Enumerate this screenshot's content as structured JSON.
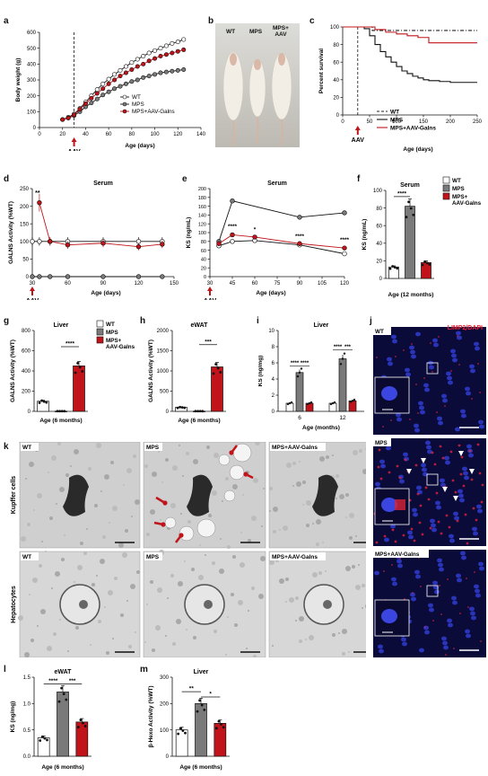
{
  "panel_letters": [
    "a",
    "b",
    "c",
    "d",
    "e",
    "f",
    "g",
    "h",
    "i",
    "j",
    "k",
    "l",
    "m"
  ],
  "groups": {
    "wt": "WT",
    "mps": "MPS",
    "mps_aav": "MPS+AAV-Galns",
    "mps_aav_short": "MPS+\nAAV"
  },
  "colors": {
    "wt": "#ffffff",
    "mps": "#7a7a7a",
    "mps_aav": "#c0141a",
    "dark": "#111111"
  },
  "aav_label": "AAV",
  "photo": {
    "labels": [
      "WT",
      "MPS",
      "MPS+\nAAV"
    ]
  },
  "microscopy_k": {
    "row_labels": [
      "Kupffer cells",
      "Hepatocytes"
    ],
    "col_labels": [
      "WT",
      "MPS",
      "MPS+AAV-Galns"
    ]
  },
  "microscopy_j": {
    "stain": "LIMP2/DAPI",
    "panels": [
      "WT",
      "MPS",
      "MPS+AAV-Galns"
    ]
  },
  "chart_data": [
    {
      "panel": "a",
      "type": "line",
      "xlabel": "Age (days)",
      "ylabel": "Body weight (g)",
      "xlim": [
        0,
        140
      ],
      "ylim": [
        0,
        600
      ],
      "x": [
        20,
        25,
        30,
        35,
        40,
        45,
        50,
        55,
        60,
        65,
        70,
        75,
        80,
        85,
        90,
        95,
        100,
        105,
        110,
        115,
        120,
        125
      ],
      "series": [
        {
          "name": "WT",
          "values": [
            50,
            65,
            85,
            120,
            160,
            200,
            240,
            275,
            305,
            335,
            360,
            385,
            410,
            430,
            450,
            470,
            485,
            500,
            515,
            530,
            540,
            555
          ]
        },
        {
          "name": "MPS",
          "values": [
            50,
            60,
            75,
            100,
            130,
            155,
            180,
            205,
            225,
            245,
            260,
            275,
            290,
            300,
            315,
            325,
            335,
            345,
            350,
            355,
            360,
            365
          ]
        },
        {
          "name": "MPS+AAV-Galns",
          "values": [
            50,
            60,
            80,
            115,
            150,
            185,
            215,
            245,
            275,
            300,
            325,
            345,
            365,
            385,
            400,
            420,
            435,
            450,
            460,
            470,
            480,
            490
          ]
        }
      ]
    },
    {
      "panel": "c",
      "type": "line",
      "xlabel": "Age (days)",
      "ylabel": "Percent survival",
      "xlim": [
        0,
        250
      ],
      "ylim": [
        0,
        100
      ],
      "series": [
        {
          "name": "WT",
          "x": [
            0,
            50,
            55,
            250
          ],
          "values": [
            100,
            100,
            96,
            96
          ]
        },
        {
          "name": "MPS",
          "x": [
            0,
            40,
            50,
            60,
            70,
            80,
            90,
            100,
            110,
            120,
            130,
            140,
            150,
            160,
            180,
            200,
            220,
            250
          ],
          "values": [
            100,
            98,
            90,
            80,
            72,
            66,
            60,
            55,
            50,
            47,
            44,
            42,
            40,
            39,
            38,
            37,
            37,
            37
          ]
        },
        {
          "name": "MPS+AAV-Galns",
          "x": [
            0,
            50,
            60,
            80,
            100,
            120,
            140,
            160,
            250
          ],
          "values": [
            100,
            100,
            97,
            94,
            92,
            90,
            88,
            82,
            82
          ]
        }
      ]
    },
    {
      "panel": "d",
      "type": "line",
      "title": "Serum",
      "xlabel": "Age (days)",
      "ylabel": "GALNS Activity (%WT)",
      "xlim": [
        30,
        150
      ],
      "ylim": [
        0,
        250
      ],
      "yticks": [
        0,
        50,
        100,
        150,
        200,
        250
      ],
      "xticks": [
        30,
        60,
        90,
        120,
        150
      ],
      "series": [
        {
          "name": "WT",
          "x": [
            30,
            36,
            45,
            60,
            90,
            120,
            140
          ],
          "values": [
            100,
            100,
            100,
            100,
            100,
            100,
            100
          ]
        },
        {
          "name": "MPS",
          "x": [
            30,
            36,
            45,
            60,
            90,
            120,
            140
          ],
          "values": [
            0,
            0,
            0,
            0,
            0,
            0,
            0
          ]
        },
        {
          "name": "MPS+AAV-Galns",
          "x": [
            36,
            45,
            60,
            90,
            120,
            140
          ],
          "values": [
            210,
            100,
            90,
            95,
            85,
            92
          ]
        }
      ],
      "annotations": [
        "**"
      ]
    },
    {
      "panel": "e",
      "type": "line",
      "title": "Serum",
      "xlabel": "Age (days)",
      "ylabel": "KS (ng/mL)",
      "xlim": [
        30,
        120
      ],
      "ylim": [
        0,
        200
      ],
      "yticks": [
        0,
        20,
        40,
        60,
        80,
        100,
        120,
        140,
        160,
        180,
        200
      ],
      "xticks": [
        30,
        45,
        60,
        75,
        90,
        105,
        120
      ],
      "series": [
        {
          "name": "WT",
          "x": [
            36,
            45,
            60,
            90,
            120
          ],
          "values": [
            70,
            80,
            82,
            72,
            52
          ]
        },
        {
          "name": "MPS",
          "x": [
            36,
            45,
            90,
            120
          ],
          "values": [
            80,
            172,
            135,
            145
          ]
        },
        {
          "name": "MPS+AAV-Galns",
          "x": [
            36,
            45,
            60,
            90,
            120
          ],
          "values": [
            75,
            95,
            90,
            75,
            65
          ]
        }
      ],
      "annotations": [
        "****",
        "*",
        "****",
        "****"
      ]
    },
    {
      "panel": "f",
      "type": "bar",
      "title": "Serum",
      "xlabel": "Age (12 months)",
      "ylabel": "KS (ng/mL)",
      "ylim": [
        0,
        100
      ],
      "yticks": [
        0,
        20,
        40,
        60,
        80,
        100
      ],
      "categories": [
        "WT",
        "MPS",
        "MPS+AAV-Galns"
      ],
      "values": [
        13,
        82,
        18
      ],
      "annotations": [
        "****"
      ],
      "legend": [
        "WT",
        "MPS",
        "MPS+\nAAV-Galns"
      ]
    },
    {
      "panel": "g",
      "type": "bar",
      "title": "Liver",
      "xlabel": "Age (6 months)",
      "ylabel": "GALNS Activity (%WT)",
      "ylim": [
        0,
        800
      ],
      "yticks": [
        0,
        200,
        400,
        600,
        800
      ],
      "categories": [
        "WT",
        "MPS",
        "MPS+AAV-Galns"
      ],
      "values": [
        100,
        2,
        450
      ],
      "annotations": [
        "****"
      ],
      "legend": [
        "WT",
        "MPS",
        "MPS+\nAAV-Galns"
      ]
    },
    {
      "panel": "h",
      "type": "bar",
      "title": "eWAT",
      "xlabel": "Age (6 months)",
      "ylabel": "GALNS Activity (%WT)",
      "ylim": [
        0,
        2000
      ],
      "yticks": [
        0,
        500,
        1000,
        1500,
        2000
      ],
      "categories": [
        "WT",
        "MPS",
        "MPS+AAV-Galns"
      ],
      "values": [
        100,
        5,
        1100
      ],
      "annotations": [
        "***"
      ]
    },
    {
      "panel": "i",
      "type": "bar",
      "title": "Liver",
      "xlabel": "Age (months)",
      "ylabel": "KS (ng/mg)",
      "ylim": [
        0,
        10
      ],
      "yticks": [
        0,
        2,
        4,
        6,
        8,
        10
      ],
      "categories": [
        "6",
        "12"
      ],
      "series": [
        {
          "name": "WT",
          "values": [
            1.0,
            1.0
          ]
        },
        {
          "name": "MPS",
          "values": [
            4.8,
            6.5
          ]
        },
        {
          "name": "MPS+AAV-Galns",
          "values": [
            1.0,
            1.3
          ]
        }
      ],
      "annotations": [
        "****",
        "****",
        "****",
        "***"
      ]
    },
    {
      "panel": "l",
      "type": "bar",
      "title": "eWAT",
      "xlabel": "Age (6 months)",
      "ylabel": "KS (ng/mg)",
      "ylim": [
        0,
        1.5
      ],
      "yticks": [
        0.0,
        0.5,
        1.0,
        1.5
      ],
      "ytick_labels": [
        "0.0",
        "0.5",
        "1.0",
        "1.5"
      ],
      "categories": [
        "WT",
        "MPS",
        "MPS+AAV-Galns"
      ],
      "values": [
        0.35,
        1.22,
        0.65
      ],
      "annotations": [
        "****",
        "***"
      ]
    },
    {
      "panel": "m",
      "type": "bar",
      "title": "Liver",
      "xlabel": "Age (6 months)",
      "ylabel": "β-Hexo Activity (%WT)",
      "ylim": [
        0,
        300
      ],
      "yticks": [
        0,
        100,
        200,
        300
      ],
      "categories": [
        "WT",
        "MPS",
        "MPS+AAV-Galns"
      ],
      "values": [
        100,
        200,
        125
      ],
      "annotations": [
        "**",
        "*"
      ]
    }
  ]
}
